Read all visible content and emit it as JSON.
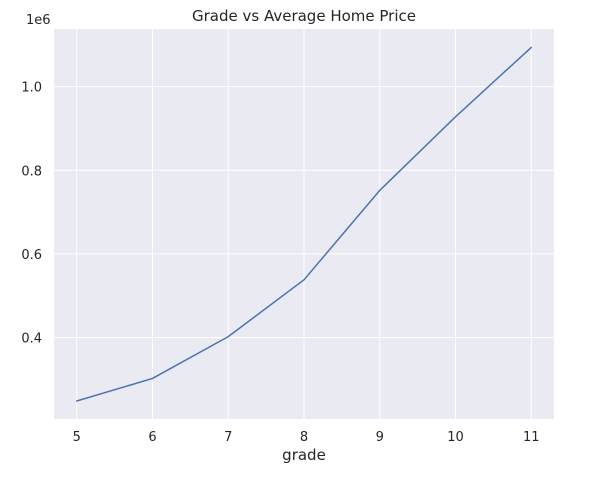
{
  "chart_data": {
    "type": "line",
    "title": "Grade vs Average Home Price",
    "xlabel": "grade",
    "ylabel": "",
    "y_offset_label": "1e6",
    "x": [
      5,
      6,
      7,
      8,
      9,
      10,
      11
    ],
    "series": [
      {
        "values": [
          0.248,
          0.302,
          0.402,
          0.538,
          0.752,
          0.928,
          1.094
        ],
        "color": "#4c72b0"
      }
    ],
    "xticks": [
      5,
      6,
      7,
      8,
      9,
      10,
      11
    ],
    "xtick_labels": [
      "5",
      "6",
      "7",
      "8",
      "9",
      "10",
      "11"
    ],
    "yticks": [
      0.4,
      0.6,
      0.8,
      1.0
    ],
    "ytick_labels": [
      "0.4",
      "0.6",
      "0.8",
      "1.0"
    ],
    "xlim": [
      4.7,
      11.3
    ],
    "ylim": [
      0.205,
      1.138
    ],
    "grid": true,
    "background_color": "#eaeaf2",
    "grid_color": "#ffffff"
  }
}
